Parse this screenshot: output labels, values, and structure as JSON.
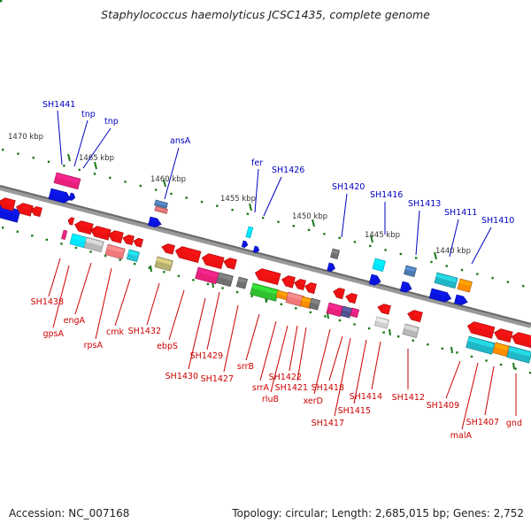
{
  "title": "Staphylococcus haemolyticus JCSC1435, complete genome",
  "footer": {
    "accession": "Accession: NC_007168",
    "summary": "Topology: circular; Length: 2,685,015 bp; Genes: 2,752"
  },
  "colors": {
    "forward_label": "#0000c0",
    "reverse_label": "#cc0000",
    "kbp_tick": "#1a7a1a",
    "backbone": "#808080"
  },
  "scale_labels": [
    "1470 kbp",
    "1465 kbp",
    "1460 kbp",
    "1455 kbp",
    "1450 kbp",
    "1445 kbp",
    "1440 kbp"
  ],
  "forward_genes": [
    "SH1441",
    "tnp",
    "tnp",
    "ansA",
    "fer",
    "SH1426",
    "SH1420",
    "SH1416",
    "SH1413",
    "SH1411",
    "SH1410"
  ],
  "reverse_genes": [
    "SH1438",
    "gpsA",
    "engA",
    "rpsA",
    "cmk",
    "SH1432",
    "ebpS",
    "SH1430",
    "SH1429",
    "SH1427",
    "srrB",
    "srrA",
    "rluB",
    "SH1422",
    "SH1421",
    "xerD",
    "SH1418",
    "SH1417",
    "SH1415",
    "SH1414",
    "SH1412",
    "SH1409",
    "malA",
    "SH1407",
    "gnd"
  ]
}
